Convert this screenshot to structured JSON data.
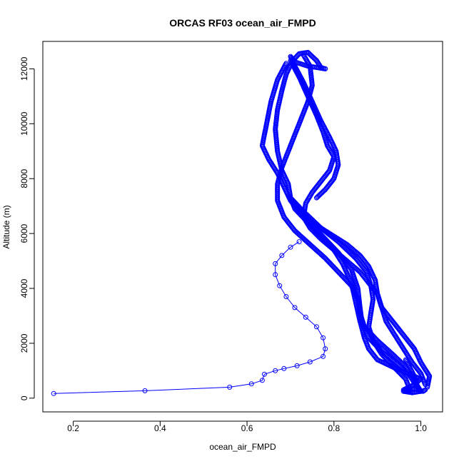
{
  "chart_data": {
    "type": "scatter",
    "title": "ORCAS RF03 ocean_air_FMPD",
    "xlabel": "ocean_air_FMPD",
    "ylabel": "Altitude (m)",
    "xlim": [
      0.13,
      1.05
    ],
    "ylim": [
      -500,
      13000
    ],
    "xticks": [
      0.2,
      0.4,
      0.6,
      0.8,
      1.0
    ],
    "xtick_labels": [
      "0.2",
      "0.4",
      "0.6",
      "0.8",
      "1.0"
    ],
    "yticks": [
      0,
      2000,
      4000,
      6000,
      8000,
      10000,
      12000
    ],
    "ytick_labels": [
      "0",
      "2000",
      "4000",
      "6000",
      "8000",
      "10000",
      "12000"
    ],
    "grid": false,
    "marker": "open-circle",
    "line_connected": true,
    "color": "#0000ff",
    "series": [
      {
        "points": [
          [
            0.155,
            170
          ],
          [
            0.365,
            270
          ],
          [
            0.56,
            400
          ],
          [
            0.61,
            520
          ],
          [
            0.635,
            650
          ],
          [
            0.64,
            870
          ],
          [
            0.665,
            1000
          ],
          [
            0.685,
            1080
          ],
          [
            0.715,
            1180
          ],
          [
            0.745,
            1320
          ],
          [
            0.775,
            1520
          ],
          [
            0.78,
            1800
          ],
          [
            0.775,
            2200
          ],
          [
            0.76,
            2600
          ],
          [
            0.735,
            2950
          ],
          [
            0.71,
            3300
          ],
          [
            0.69,
            3700
          ],
          [
            0.675,
            4100
          ],
          [
            0.665,
            4500
          ],
          [
            0.665,
            4900
          ],
          [
            0.68,
            5200
          ],
          [
            0.7,
            5500
          ],
          [
            0.72,
            5700
          ]
        ]
      },
      {
        "points": [
          [
            0.98,
            200
          ],
          [
            0.96,
            300
          ],
          [
            0.985,
            500
          ],
          [
            1.0,
            700
          ],
          [
            0.97,
            900
          ],
          [
            0.94,
            1100
          ],
          [
            0.9,
            1400
          ],
          [
            0.88,
            1800
          ],
          [
            0.87,
            2200
          ],
          [
            0.86,
            2800
          ],
          [
            0.85,
            3500
          ],
          [
            0.84,
            4200
          ],
          [
            0.82,
            4900
          ],
          [
            0.8,
            5400
          ],
          [
            0.77,
            5900
          ],
          [
            0.74,
            6400
          ],
          [
            0.71,
            6900
          ],
          [
            0.7,
            7300
          ],
          [
            0.695,
            7800
          ],
          [
            0.68,
            8300
          ],
          [
            0.67,
            9000
          ],
          [
            0.665,
            9800
          ],
          [
            0.67,
            10500
          ],
          [
            0.68,
            11200
          ],
          [
            0.69,
            11800
          ],
          [
            0.705,
            12300
          ],
          [
            0.72,
            12550
          ],
          [
            0.74,
            12600
          ],
          [
            0.76,
            12300
          ],
          [
            0.77,
            12050
          ],
          [
            0.78,
            12000
          ]
        ]
      },
      {
        "points": [
          [
            0.78,
            12000
          ],
          [
            0.74,
            12100
          ],
          [
            0.71,
            12250
          ],
          [
            0.7,
            12450
          ],
          [
            0.71,
            12100
          ],
          [
            0.73,
            11500
          ],
          [
            0.75,
            10800
          ],
          [
            0.77,
            10100
          ],
          [
            0.79,
            9500
          ],
          [
            0.805,
            9000
          ],
          [
            0.81,
            8500
          ],
          [
            0.8,
            8000
          ],
          [
            0.78,
            7600
          ],
          [
            0.76,
            7300
          ]
        ]
      },
      {
        "points": [
          [
            0.69,
            12200
          ],
          [
            0.67,
            11600
          ],
          [
            0.655,
            10800
          ],
          [
            0.645,
            10000
          ],
          [
            0.635,
            9200
          ],
          [
            0.65,
            8700
          ],
          [
            0.67,
            8200
          ],
          [
            0.685,
            7700
          ],
          [
            0.7,
            7200
          ],
          [
            0.72,
            6800
          ],
          [
            0.75,
            6300
          ],
          [
            0.78,
            5800
          ],
          [
            0.81,
            5300
          ],
          [
            0.84,
            4700
          ],
          [
            0.855,
            4000
          ],
          [
            0.86,
            3300
          ],
          [
            0.865,
            2700
          ],
          [
            0.88,
            2200
          ],
          [
            0.91,
            1700
          ],
          [
            0.95,
            1200
          ],
          [
            0.975,
            800
          ],
          [
            0.99,
            450
          ],
          [
            1.0,
            250
          ]
        ]
      },
      {
        "points": [
          [
            0.73,
            12500
          ],
          [
            0.745,
            12100
          ],
          [
            0.75,
            11400
          ],
          [
            0.74,
            10800
          ],
          [
            0.725,
            10200
          ],
          [
            0.71,
            9600
          ],
          [
            0.695,
            9000
          ],
          [
            0.68,
            8400
          ],
          [
            0.67,
            7800
          ],
          [
            0.67,
            7200
          ],
          [
            0.685,
            6600
          ],
          [
            0.71,
            6100
          ],
          [
            0.745,
            5600
          ],
          [
            0.78,
            5100
          ],
          [
            0.81,
            4600
          ],
          [
            0.84,
            4100
          ],
          [
            0.855,
            3600
          ],
          [
            0.86,
            3100
          ],
          [
            0.87,
            2600
          ],
          [
            0.9,
            2100
          ],
          [
            0.935,
            1600
          ],
          [
            0.965,
            1150
          ],
          [
            0.985,
            700
          ],
          [
            0.995,
            350
          ]
        ]
      },
      {
        "points": [
          [
            0.7,
            12300
          ],
          [
            0.72,
            11700
          ],
          [
            0.74,
            11000
          ],
          [
            0.76,
            10300
          ],
          [
            0.775,
            9700
          ],
          [
            0.785,
            9200
          ],
          [
            0.8,
            8800
          ],
          [
            0.79,
            8300
          ],
          [
            0.77,
            7900
          ],
          [
            0.75,
            7500
          ],
          [
            0.735,
            7100
          ],
          [
            0.73,
            6600
          ],
          [
            0.745,
            6200
          ],
          [
            0.77,
            5800
          ],
          [
            0.8,
            5400
          ],
          [
            0.83,
            5000
          ],
          [
            0.86,
            4600
          ],
          [
            0.88,
            4200
          ],
          [
            0.9,
            3800
          ],
          [
            0.91,
            3300
          ],
          [
            0.92,
            2800
          ],
          [
            0.94,
            2300
          ],
          [
            0.96,
            1800
          ],
          [
            0.98,
            1300
          ],
          [
            1.0,
            900
          ],
          [
            1.01,
            500
          ]
        ]
      },
      {
        "points": [
          [
            0.7,
            7300
          ],
          [
            0.72,
            6900
          ],
          [
            0.75,
            6400
          ],
          [
            0.79,
            6000
          ],
          [
            0.83,
            5600
          ],
          [
            0.86,
            5200
          ],
          [
            0.88,
            4800
          ],
          [
            0.895,
            4300
          ],
          [
            0.9,
            3800
          ],
          [
            0.91,
            3300
          ],
          [
            0.935,
            2800
          ],
          [
            0.96,
            2300
          ],
          [
            0.985,
            1800
          ],
          [
            1.0,
            1300
          ],
          [
            1.02,
            800
          ],
          [
            1.015,
            400
          ]
        ]
      },
      {
        "points": [
          [
            0.7,
            7300
          ],
          [
            0.73,
            6800
          ],
          [
            0.77,
            6200
          ],
          [
            0.81,
            5700
          ],
          [
            0.85,
            5100
          ],
          [
            0.875,
            4600
          ],
          [
            0.885,
            4100
          ],
          [
            0.89,
            3600
          ],
          [
            0.885,
            3100
          ],
          [
            0.88,
            2600
          ],
          [
            0.89,
            2100
          ],
          [
            0.91,
            1600
          ],
          [
            0.94,
            1100
          ],
          [
            0.965,
            700
          ],
          [
            0.975,
            300
          ]
        ]
      },
      {
        "points": [
          [
            0.965,
            1400
          ],
          [
            0.975,
            1100
          ],
          [
            0.985,
            800
          ],
          [
            0.99,
            500
          ],
          [
            1.0,
            250
          ],
          [
            0.98,
            200
          ],
          [
            0.96,
            250
          ],
          [
            0.975,
            350
          ],
          [
            0.995,
            300
          ],
          [
            1.005,
            250
          ],
          [
            1.01,
            300
          ]
        ]
      }
    ]
  }
}
